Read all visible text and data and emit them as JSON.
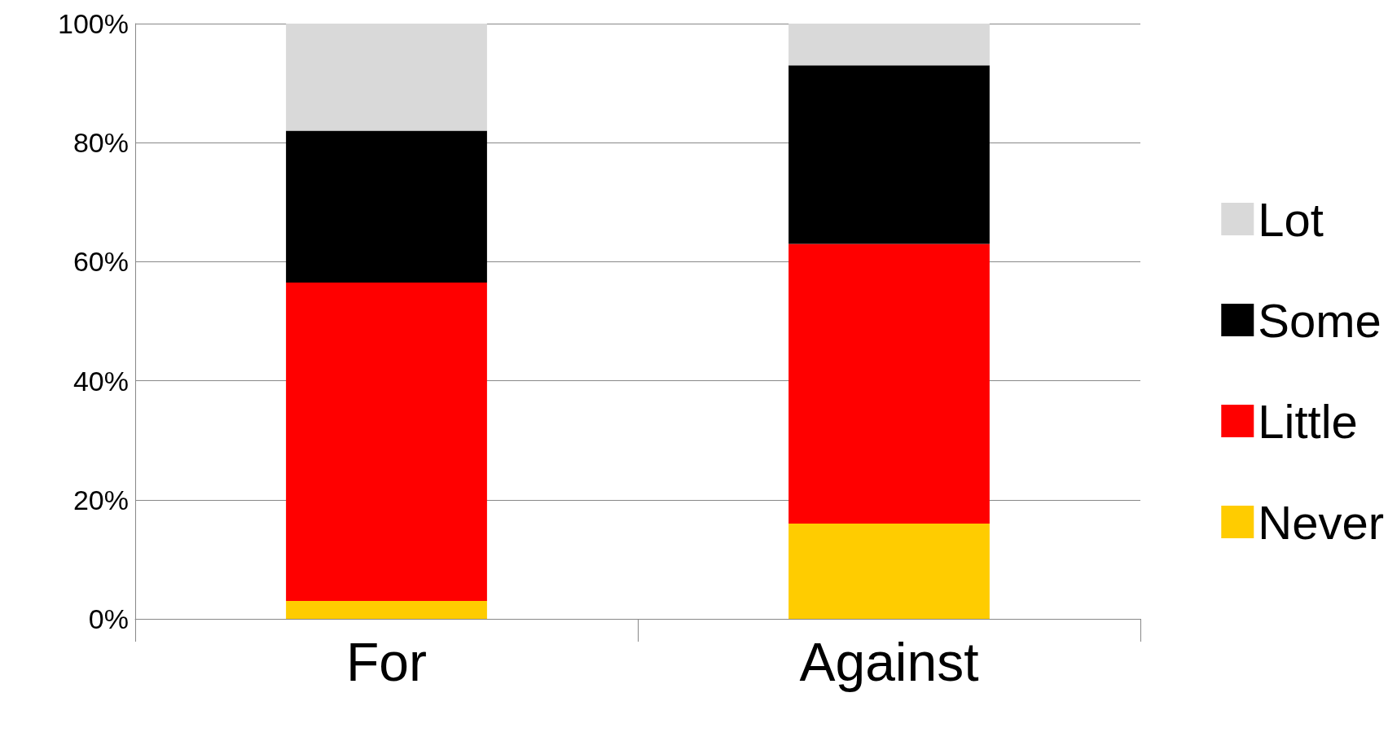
{
  "chart_data": {
    "type": "bar",
    "stacked": true,
    "categories": [
      "For",
      "Against"
    ],
    "series": [
      {
        "name": "Never",
        "color": "#ffcc00",
        "values": [
          3,
          16
        ]
      },
      {
        "name": "Little",
        "color": "#ff0000",
        "values": [
          53.5,
          47
        ]
      },
      {
        "name": "Some",
        "color": "#000000",
        "values": [
          25.5,
          30
        ]
      },
      {
        "name": "Lot",
        "color": "#d9d9d9",
        "values": [
          18,
          7
        ]
      }
    ],
    "ylim": [
      0,
      100
    ],
    "yticks": [
      {
        "value": 0,
        "label": "0%"
      },
      {
        "value": 20,
        "label": "20%"
      },
      {
        "value": 40,
        "label": "40%"
      },
      {
        "value": 60,
        "label": "60%"
      },
      {
        "value": 80,
        "label": "80%"
      },
      {
        "value": 100,
        "label": "100%"
      }
    ],
    "grid": "y",
    "legend": "right"
  }
}
